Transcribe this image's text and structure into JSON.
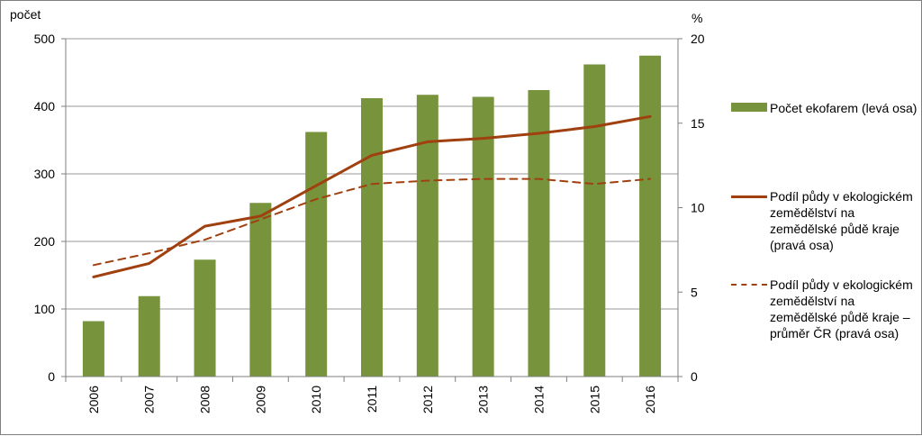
{
  "chart_data": {
    "type": "bar",
    "categories": [
      "2006",
      "2007",
      "2008",
      "2009",
      "2010",
      "2011",
      "2012",
      "2013",
      "2014",
      "2015",
      "2016"
    ],
    "series": [
      {
        "name": "Počet ekofarem (levá osa)",
        "type": "bar",
        "axis": "left",
        "values": [
          82,
          119,
          173,
          257,
          362,
          412,
          417,
          414,
          424,
          462,
          475
        ],
        "color": "#77933c"
      },
      {
        "name": "Podíl půdy v ekologickém zemědělství na zemědělské půdě kraje (pravá osa)",
        "type": "line",
        "axis": "right",
        "style": "solid",
        "values": [
          5.9,
          6.7,
          8.9,
          9.5,
          11.3,
          13.1,
          13.9,
          14.1,
          14.4,
          14.8,
          15.4
        ],
        "color": "#a0400f"
      },
      {
        "name": "Podíl půdy v ekologickém zemědělství na zemědělské půdě kraje – průměr ČR (pravá osa)",
        "type": "line",
        "axis": "right",
        "style": "dashed",
        "values": [
          6.6,
          7.3,
          8.1,
          9.3,
          10.5,
          11.4,
          11.6,
          11.7,
          11.7,
          11.4,
          11.7
        ],
        "color": "#a0400f"
      }
    ],
    "left_axis": {
      "label": "počet",
      "ylim": [
        0,
        500
      ],
      "ticks": [
        "0",
        "100",
        "200",
        "300",
        "400",
        "500"
      ]
    },
    "right_axis": {
      "label": "%",
      "ylim": [
        0,
        20
      ],
      "ticks": [
        "0",
        "5",
        "10",
        "15",
        "20"
      ]
    },
    "grid": true,
    "legend_position": "right"
  }
}
